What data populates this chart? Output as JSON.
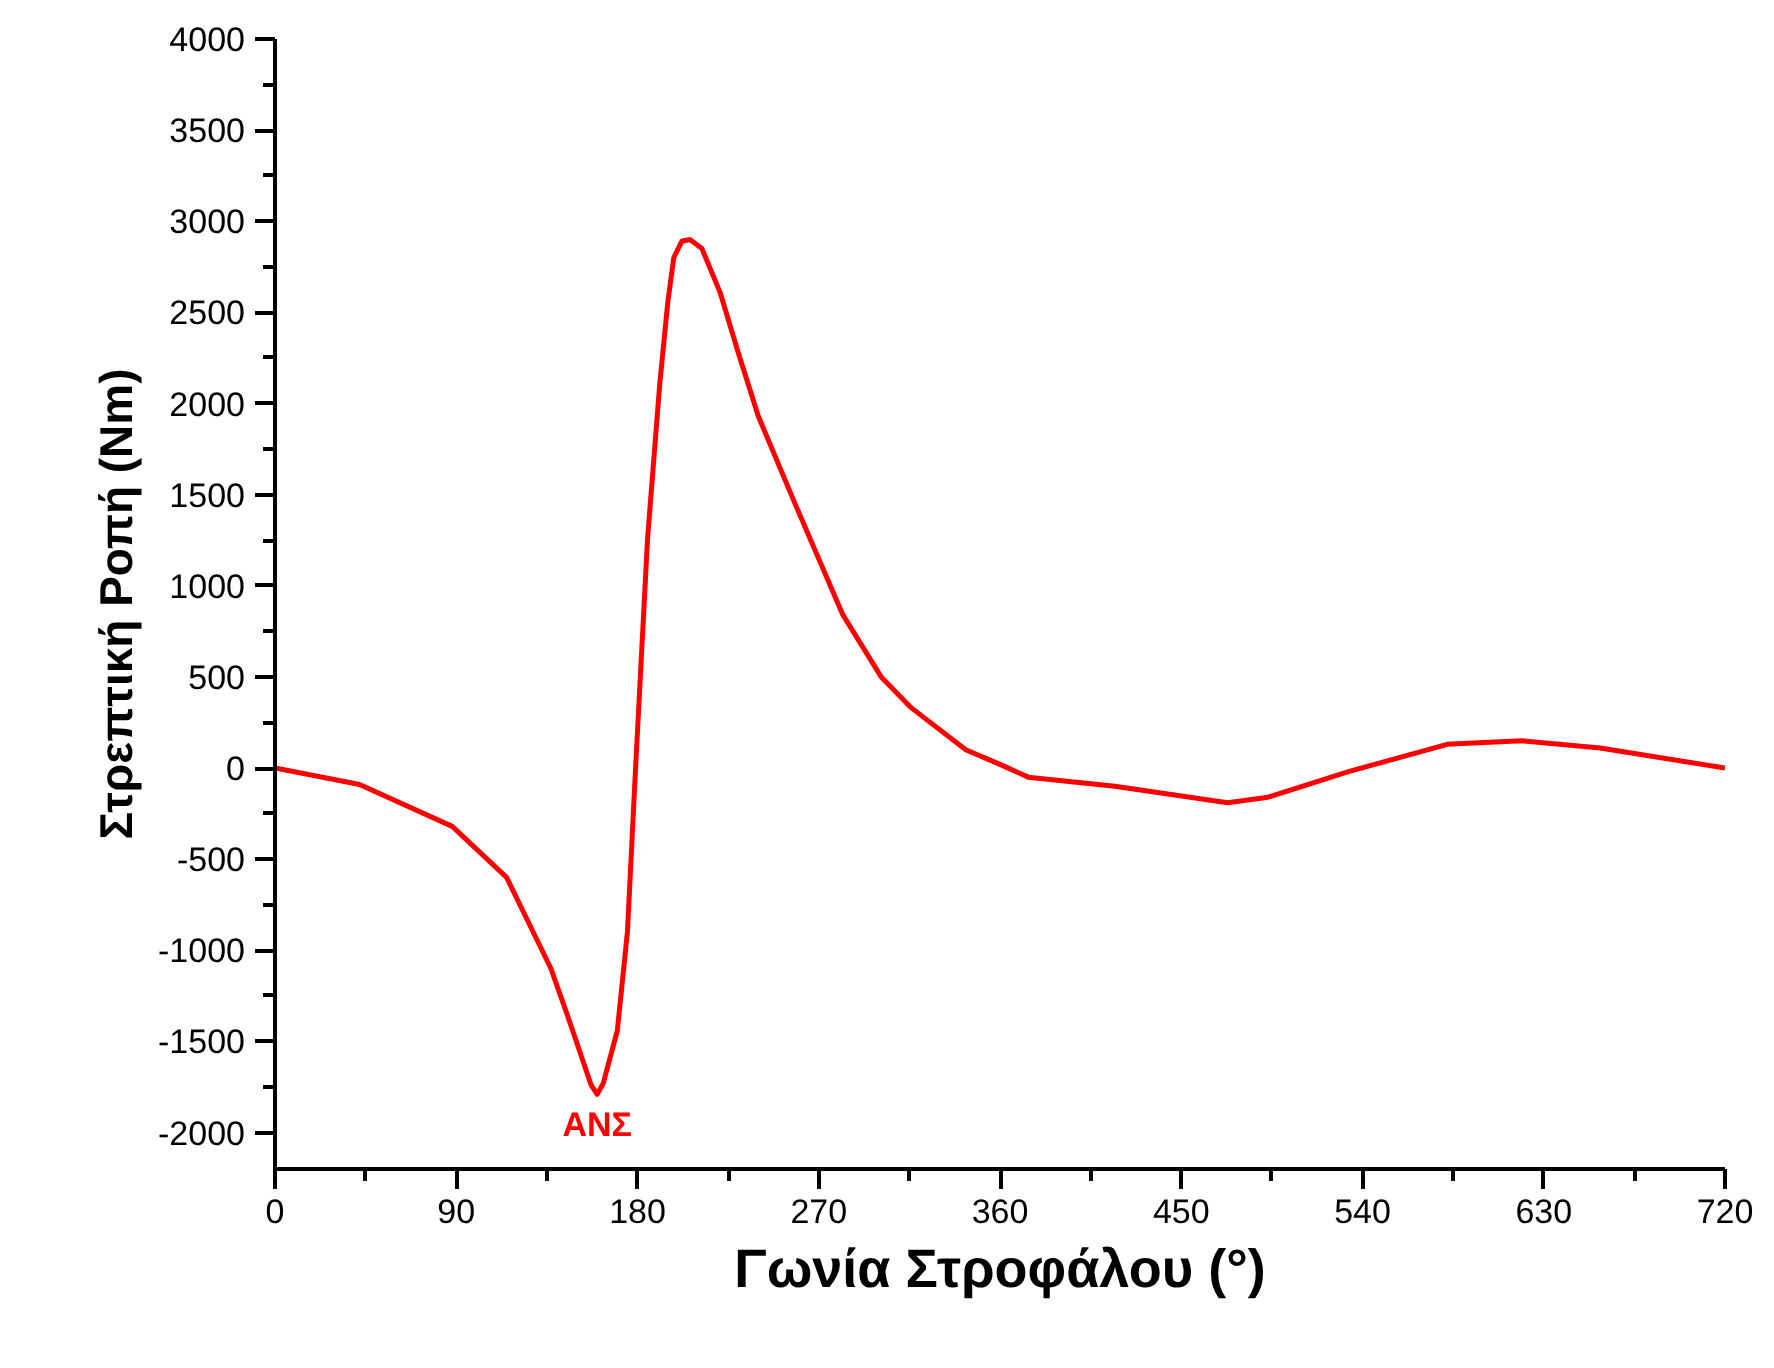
{
  "chart_data": {
    "type": "line",
    "xlabel": "Γωνία Στροφάλου (°)",
    "ylabel": "Στρεπτική Ροπή (Nm)",
    "x": [
      0,
      42,
      88,
      115,
      137,
      145,
      153,
      157,
      160,
      163,
      170,
      175,
      179,
      185,
      191,
      195,
      198,
      202,
      206,
      212,
      221,
      230,
      240,
      259,
      282,
      301,
      316,
      343,
      360,
      374,
      417,
      473,
      493,
      533,
      582,
      619,
      658,
      720
    ],
    "series": [
      {
        "color": "#ff0000",
        "values": [
          0,
          -90,
          -320,
          -600,
          -1100,
          -1350,
          -1610,
          -1740,
          -1790,
          -1730,
          -1440,
          -900,
          -10,
          1260,
          2100,
          2550,
          2800,
          2890,
          2900,
          2850,
          2610,
          2280,
          1930,
          1430,
          840,
          500,
          330,
          100,
          20,
          -50,
          -100,
          -190,
          -160,
          -20,
          130,
          150,
          110,
          0
        ]
      }
    ],
    "xlim": [
      0,
      720
    ],
    "ylim": [
      -2200,
      4000
    ],
    "xticks": [
      0,
      {
        "value": 45,
        "label": null
      },
      90,
      {
        "value": 135,
        "label": null
      },
      180,
      {
        "value": 225,
        "label": null
      },
      270,
      {
        "value": 315,
        "label": null
      },
      360,
      {
        "value": 405,
        "label": null
      },
      450,
      {
        "value": 495,
        "label": null
      },
      540,
      {
        "value": 585,
        "label": null
      },
      630,
      {
        "value": 675,
        "label": null
      },
      720
    ],
    "yticks": [
      {
        "value": -2000,
        "label": "-2000"
      },
      {
        "value": -1750,
        "label": null
      },
      {
        "value": -1500,
        "label": "-1500"
      },
      {
        "value": -1250,
        "label": null
      },
      {
        "value": -1000,
        "label": "-1000"
      },
      {
        "value": -750,
        "label": null
      },
      {
        "value": -500,
        "label": "-500"
      },
      {
        "value": -250,
        "label": null
      },
      0,
      {
        "value": 250,
        "label": null
      },
      500,
      {
        "value": 750,
        "label": null
      },
      1000,
      {
        "value": 1250,
        "label": null
      },
      1500,
      {
        "value": 1750,
        "label": null
      },
      2000,
      {
        "value": 2250,
        "label": null
      },
      2500,
      {
        "value": 2750,
        "label": null
      },
      3000,
      {
        "value": 3250,
        "label": null
      },
      3500,
      {
        "value": 3750,
        "label": null
      },
      4000
    ],
    "annotations": [
      {
        "text": "ΑΝΣ",
        "x": 160,
        "y": -1790
      }
    ],
    "line_style": "solid"
  }
}
